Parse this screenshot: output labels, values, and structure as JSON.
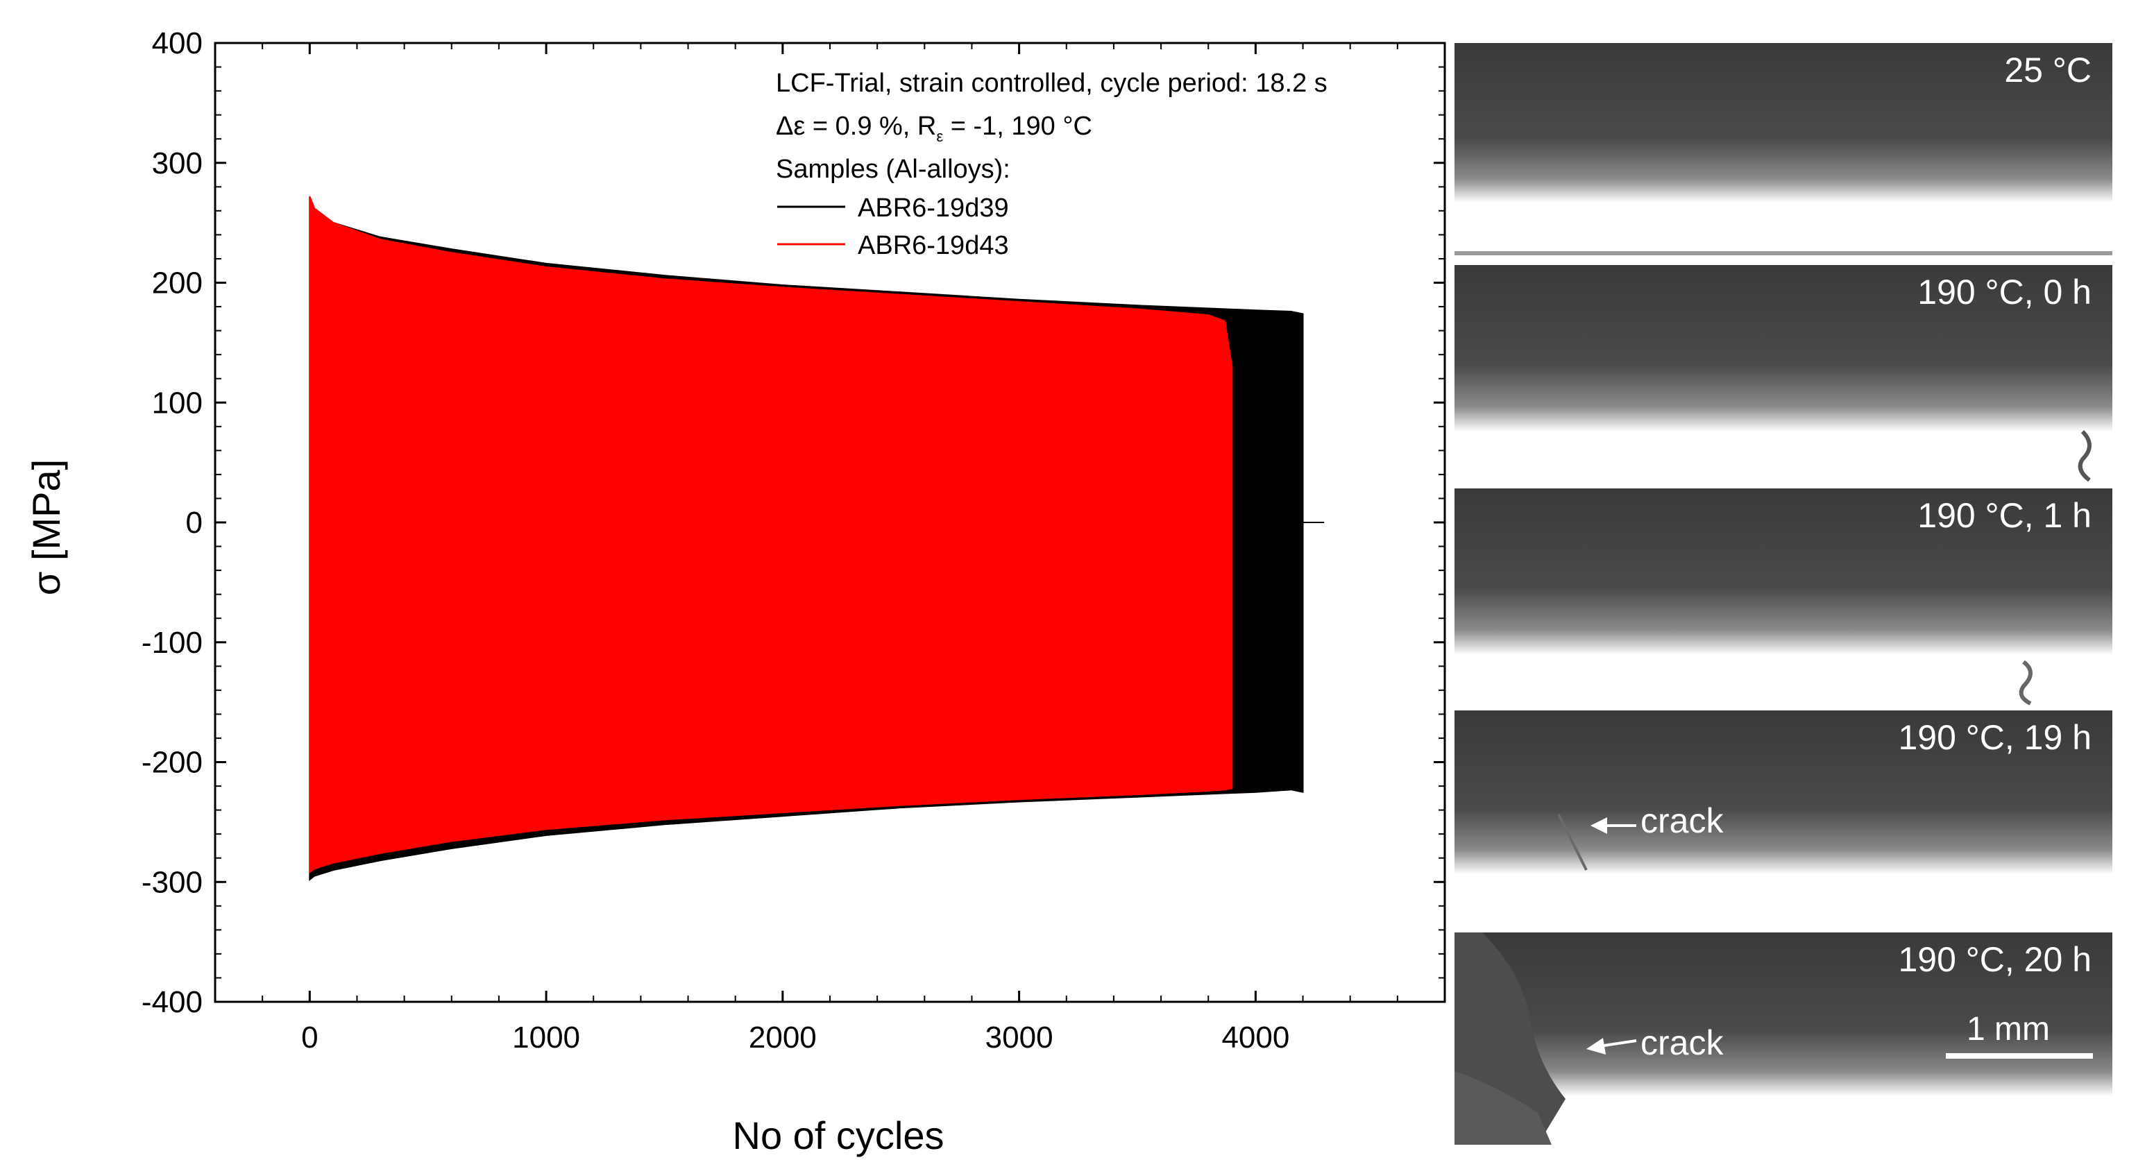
{
  "chart_data": {
    "type": "area",
    "title": "",
    "xlabel": "No of cycles",
    "ylabel": "σ [MPa]",
    "xlim": [
      -400,
      4800
    ],
    "ylim": [
      -400,
      400
    ],
    "xticks": [
      0,
      1000,
      2000,
      3000,
      4000
    ],
    "yticks": [
      -400,
      -300,
      -200,
      -100,
      0,
      100,
      200,
      300,
      400
    ],
    "xtick_labels": [
      "0",
      "1000",
      "2000",
      "3000",
      "4000"
    ],
    "ytick_labels": [
      "-400",
      "-300",
      "-200",
      "-100",
      "0",
      "100",
      "200",
      "300",
      "400"
    ],
    "annotation_lines": [
      "LCF-Trial, strain controlled, cycle period: 18.2 s",
      "Δε = 0.9 %, R",
      "ε",
      " = -1, 190 °C",
      "Samples (Al-alloys):"
    ],
    "series": [
      {
        "name": "ABR6-19d39",
        "color": "#000000",
        "cycles": [
          0,
          20,
          100,
          300,
          600,
          1000,
          1500,
          2000,
          2500,
          3000,
          3500,
          4000,
          4150,
          4200
        ],
        "upper": [
          272,
          262,
          250,
          238,
          228,
          216,
          206,
          198,
          192,
          186,
          181,
          177,
          176,
          174
        ],
        "lower": [
          -298,
          -295,
          -290,
          -282,
          -272,
          -261,
          -252,
          -245,
          -238,
          -233,
          -229,
          -225,
          -223,
          -225
        ],
        "end_cycle": 4200
      },
      {
        "name": "ABR6-19d43",
        "color": "#ff0000",
        "cycles": [
          0,
          20,
          100,
          300,
          600,
          1000,
          1500,
          2000,
          2500,
          3000,
          3500,
          3800,
          3870,
          3900
        ],
        "upper": [
          272,
          262,
          250,
          236,
          225,
          213,
          203,
          196,
          190,
          184,
          178,
          173,
          168,
          130
        ],
        "lower": [
          -292,
          -289,
          -284,
          -276,
          -266,
          -256,
          -248,
          -242,
          -236,
          -231,
          -227,
          -224,
          -223,
          -222
        ],
        "end_cycle": 3900
      }
    ]
  },
  "micrographs": [
    {
      "label": "25 °C"
    },
    {
      "label": "190 °C, 0 h"
    },
    {
      "label": "190 °C, 1 h"
    },
    {
      "label": "190 °C, 19 h",
      "crack_label": "crack"
    },
    {
      "label": "190 °C, 20 h",
      "crack_label": "crack",
      "scale_label": "1 mm"
    }
  ],
  "colors": {
    "background": "#ffffff",
    "axis": "#000000",
    "series1": "#000000",
    "series2": "#ff0000",
    "panel_bg": "#3a3a3a",
    "panel_text": "#ffffff"
  }
}
